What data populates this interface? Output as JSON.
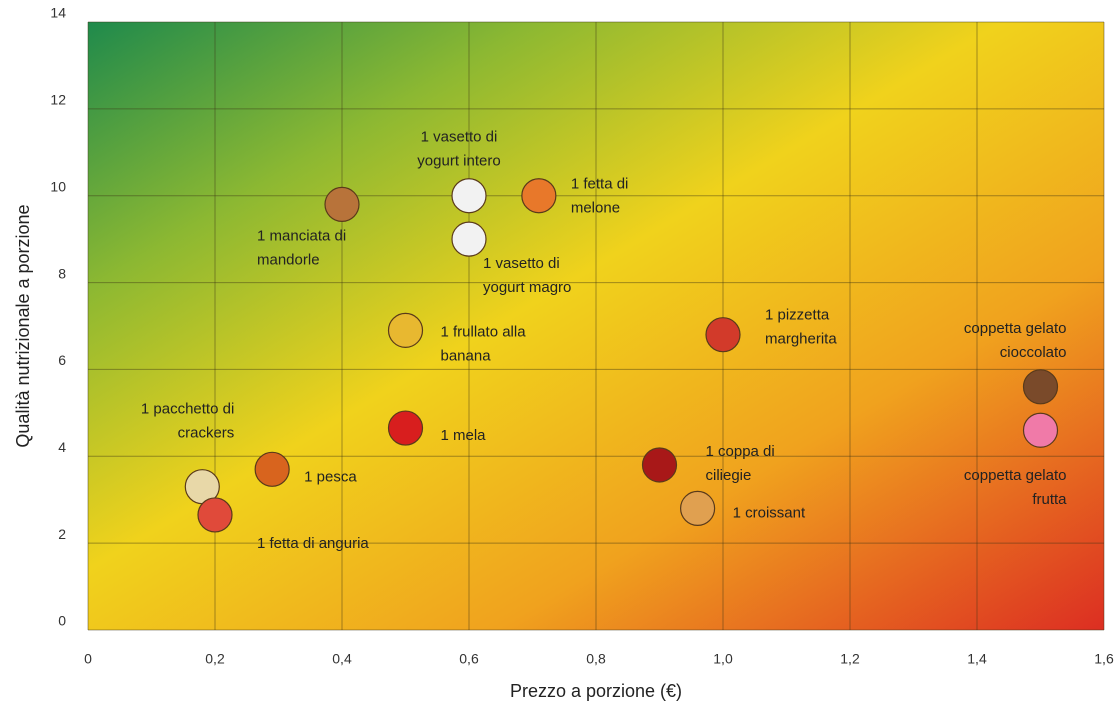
{
  "chart_data": {
    "type": "scatter",
    "x_label": "Prezzo a porzione (€)",
    "y_label": "Qualità nutrizionale a porzione",
    "x": [
      0.4,
      0.6,
      0.71,
      0.6,
      0.5,
      1.0,
      1.5,
      1.5,
      0.5,
      0.9,
      0.96,
      0.29,
      0.18,
      0.2
    ],
    "values": [
      9.8,
      10,
      10,
      9,
      6.9,
      6.8,
      5.6,
      4.6,
      4.65,
      3.8,
      2.8,
      3.7,
      3.3,
      2.65
    ],
    "labels": [
      [
        "1 manciata di",
        "mandorle"
      ],
      [
        "1 vasetto di",
        "yogurt intero"
      ],
      [
        "1 fetta di",
        "melone"
      ],
      [
        "1 vasetto di",
        "yogurt magro"
      ],
      [
        "1 frullato alla",
        "banana"
      ],
      [
        "1 pizzetta",
        "margherita"
      ],
      [
        "coppetta gelato",
        "cioccolato"
      ],
      [
        "coppetta gelato",
        "frutta"
      ],
      [
        "1 mela"
      ],
      [
        "1 coppa di",
        "ciliegie"
      ],
      [
        "1 croissant"
      ],
      [
        "1 pesca"
      ],
      [
        "1 pacchetto di",
        "crackers"
      ],
      [
        "1 fetta di anguria"
      ]
    ],
    "colors": [
      "#b8733a",
      "#f2f2f2",
      "#e8782a",
      "#f2f2f2",
      "#e8b830",
      "#d23a2a",
      "#7a4a2a",
      "#f07aa8",
      "#d81e1e",
      "#a81818",
      "#e0a050",
      "#d8641e",
      "#e8d8a8",
      "#e04a3a"
    ],
    "xlim": [
      0,
      1.6
    ],
    "ylim": [
      0,
      14
    ],
    "xticks": [
      0,
      {
        "value": 0.2,
        "label": "0,2"
      },
      {
        "value": 0.4,
        "label": "0,4"
      },
      {
        "value": 0.6,
        "label": "0,6"
      },
      {
        "value": 0.8,
        "label": "0,8"
      },
      {
        "value": 1.0,
        "label": "1,0"
      },
      {
        "value": 1.2,
        "label": "1,2"
      },
      {
        "value": 1.4,
        "label": "1,4"
      },
      {
        "value": 1.6,
        "label": "1,6"
      }
    ],
    "yticks": [
      0,
      2,
      4,
      6,
      8,
      10,
      12,
      14
    ],
    "grid": true
  }
}
